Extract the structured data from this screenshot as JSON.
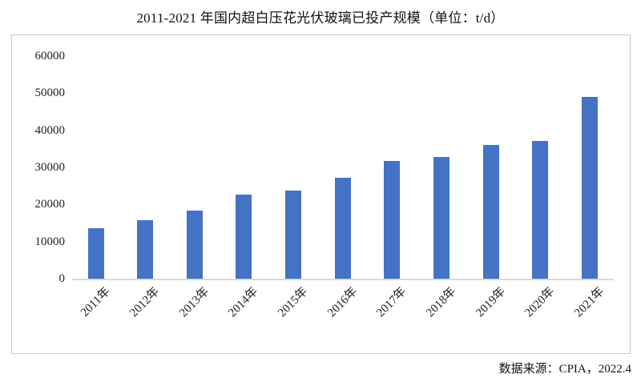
{
  "title": "2011-2021 年国内超白压花光伏玻璃已投产规模（单位：t/d）",
  "source": "数据来源：CPIA，2022.4",
  "colors": {
    "bar": "#4472c4",
    "axis_line": "#d9d9d9",
    "frame_border": "#c9c9c9",
    "text": "#1a1a1a"
  },
  "chart_data": {
    "type": "bar",
    "title": "2011-2021 年国内超白压花光伏玻璃已投产规模（单位：t/d）",
    "categories": [
      "2011年",
      "2012年",
      "2013年",
      "2014年",
      "2015年",
      "2016年",
      "2017年",
      "2018年",
      "2019年",
      "2020年",
      "2021年"
    ],
    "values": [
      13500,
      15800,
      18400,
      22600,
      23800,
      27200,
      31700,
      32800,
      36100,
      37100,
      49100
    ],
    "unit": "t/d",
    "xlabel": "",
    "ylabel": "",
    "ylim": [
      0,
      60000
    ],
    "yticks": [
      0,
      10000,
      20000,
      30000,
      40000,
      50000,
      60000
    ],
    "grid": false,
    "legend": "none",
    "annotation": "数据来源：CPIA，2022.4"
  }
}
